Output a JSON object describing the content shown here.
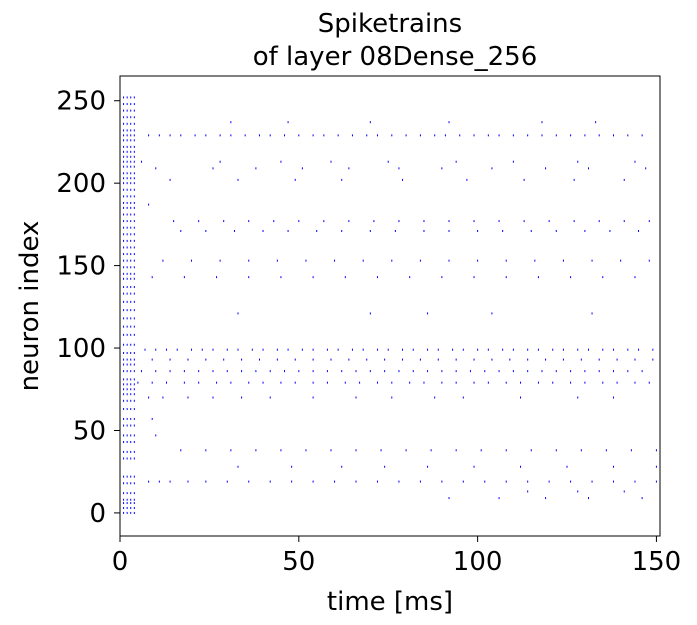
{
  "chart_data": {
    "type": "scatter",
    "subtype": "raster",
    "title": "Spiketrains",
    "subtitle": "of layer 08Dense_256",
    "xlabel": "time [ms]",
    "ylabel": "neuron index",
    "xlim": [
      0,
      151
    ],
    "ylim": [
      -14,
      265
    ],
    "xticks": [
      0,
      50,
      100,
      150
    ],
    "xtick_labels": [
      "0",
      "50",
      "100",
      "150"
    ],
    "yticks": [
      0,
      50,
      100,
      150,
      200,
      250
    ],
    "ytick_labels": [
      "0",
      "50",
      "100",
      "150",
      "200",
      "250"
    ],
    "grid": false,
    "marker_color": "#0000ff",
    "early_burst": {
      "times_ms": [
        1,
        2,
        3,
        4
      ],
      "neurons": [
        0,
        3,
        6,
        8,
        12,
        18,
        22,
        33,
        37,
        43,
        47,
        53,
        57,
        63,
        68,
        72,
        75,
        78,
        81,
        86,
        90,
        93,
        97,
        102,
        108,
        113,
        118,
        123,
        128,
        133,
        137,
        142,
        145,
        149,
        153,
        157,
        161,
        165,
        169,
        173,
        177,
        181,
        185,
        188,
        192,
        196,
        200,
        203,
        206,
        210,
        213,
        216,
        219,
        222,
        226,
        229,
        232,
        236,
        240,
        244,
        248,
        252
      ]
    },
    "active_neurons": [
      {
        "neuron": 229,
        "times_ms": [
          8,
          11,
          14,
          17,
          21,
          24,
          28,
          31,
          35,
          39,
          42,
          46,
          50,
          54,
          57,
          61,
          65,
          69,
          72,
          76,
          80,
          84,
          88,
          91,
          95,
          99,
          103,
          106,
          110,
          114,
          118,
          122,
          126,
          130,
          134,
          138,
          142,
          146
        ]
      },
      {
        "neuron": 237,
        "times_ms": [
          31,
          47,
          70,
          92,
          118,
          133
        ]
      },
      {
        "neuron": 213,
        "times_ms": [
          6,
          28,
          45,
          59,
          75,
          94,
          110,
          128,
          144
        ]
      },
      {
        "neuron": 209,
        "times_ms": [
          10,
          26,
          38,
          51,
          64,
          78,
          90,
          104,
          119,
          131,
          147
        ]
      },
      {
        "neuron": 202,
        "times_ms": [
          14,
          33,
          49,
          62,
          79,
          97,
          113,
          127,
          141
        ]
      },
      {
        "neuron": 187,
        "times_ms": [
          8
        ]
      },
      {
        "neuron": 177,
        "times_ms": [
          15,
          22,
          29,
          36,
          43,
          50,
          57,
          64,
          71,
          78,
          85,
          92,
          99,
          106,
          113,
          120,
          127,
          134,
          141,
          148
        ]
      },
      {
        "neuron": 171,
        "times_ms": [
          17,
          24,
          32,
          40,
          47,
          55,
          62,
          70,
          77,
          85,
          92,
          100,
          107,
          115,
          122,
          130,
          137,
          145
        ]
      },
      {
        "neuron": 153,
        "times_ms": [
          12,
          20,
          28,
          36,
          44,
          52,
          60,
          68,
          76,
          84,
          92,
          100,
          108,
          116,
          124,
          132,
          140,
          148
        ]
      },
      {
        "neuron": 143,
        "times_ms": [
          9,
          18,
          27,
          36,
          45,
          54,
          63,
          72,
          81,
          90,
          99,
          108,
          117,
          126,
          135,
          144
        ]
      },
      {
        "neuron": 121,
        "times_ms": [
          33,
          70,
          86,
          104,
          132
        ]
      },
      {
        "neuron": 99,
        "times_ms": [
          7,
          10,
          13,
          16,
          20,
          23,
          26,
          30,
          33,
          37,
          40,
          44,
          47,
          51,
          54,
          58,
          61,
          65,
          68,
          72,
          75,
          79,
          82,
          86,
          89,
          93,
          96,
          100,
          103,
          107,
          110,
          114,
          117,
          121,
          124,
          128,
          131,
          135,
          138,
          142,
          145,
          149
        ]
      },
      {
        "neuron": 93,
        "times_ms": [
          9,
          14,
          19,
          24,
          29,
          34,
          39,
          44,
          49,
          54,
          59,
          64,
          69,
          74,
          79,
          84,
          89,
          94,
          99,
          104,
          109,
          114,
          119,
          124,
          129,
          134,
          139,
          144,
          149
        ]
      },
      {
        "neuron": 86,
        "times_ms": [
          6,
          10,
          14,
          18,
          22,
          26,
          30,
          34,
          38,
          42,
          46,
          50,
          54,
          58,
          62,
          66,
          70,
          74,
          78,
          82,
          86,
          90,
          94,
          98,
          102,
          106,
          110,
          114,
          118,
          122,
          126,
          130,
          134,
          138,
          142,
          146
        ]
      },
      {
        "neuron": 79,
        "times_ms": [
          5,
          9,
          13,
          18,
          22,
          27,
          31,
          36,
          40,
          45,
          49,
          54,
          58,
          63,
          67,
          72,
          76,
          81,
          85,
          90,
          94,
          99,
          103,
          108,
          112,
          117,
          121,
          126,
          130,
          135,
          139,
          144,
          148
        ]
      },
      {
        "neuron": 70,
        "times_ms": [
          8,
          12,
          19,
          26,
          34,
          42,
          54,
          66,
          76,
          88,
          96,
          112,
          128,
          138
        ]
      },
      {
        "neuron": 57,
        "times_ms": [
          9
        ]
      },
      {
        "neuron": 47,
        "times_ms": [
          10
        ]
      },
      {
        "neuron": 38,
        "times_ms": [
          17,
          24,
          31,
          38,
          45,
          52,
          59,
          66,
          73,
          80,
          87,
          94,
          101,
          108,
          115,
          122,
          129,
          136,
          143,
          150
        ]
      },
      {
        "neuron": 28,
        "times_ms": [
          33,
          48,
          62,
          74,
          86,
          99,
          112,
          125,
          138,
          150
        ]
      },
      {
        "neuron": 19,
        "times_ms": [
          8,
          11,
          14,
          19,
          24,
          30,
          36,
          42,
          48,
          54,
          60,
          66,
          72,
          78,
          84,
          90,
          96,
          102,
          108,
          114,
          120,
          126,
          132,
          138,
          144,
          150
        ]
      },
      {
        "neuron": 13,
        "times_ms": [
          114,
          128,
          141
        ]
      },
      {
        "neuron": 9,
        "times_ms": [
          92,
          106,
          119,
          131,
          146
        ]
      }
    ]
  }
}
